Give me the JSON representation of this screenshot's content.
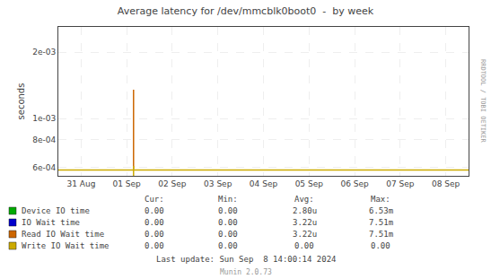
{
  "chart_data": {
    "type": "line",
    "title": "Average latency for /dev/mmcblk0boot0  -  by week",
    "ylabel": "seconds",
    "log": "y",
    "grid": true,
    "xlim": [
      -0.5,
      8.5
    ],
    "xticks": [
      {
        "value": 0,
        "label": "31 Aug"
      },
      {
        "value": 1,
        "label": "01 Sep"
      },
      {
        "value": 2,
        "label": "02 Sep"
      },
      {
        "value": 3,
        "label": "03 Sep"
      },
      {
        "value": 4,
        "label": "04 Sep"
      },
      {
        "value": 5,
        "label": "05 Sep"
      },
      {
        "value": 6,
        "label": "06 Sep"
      },
      {
        "value": 7,
        "label": "07 Sep"
      },
      {
        "value": 8,
        "label": "08 Sep"
      }
    ],
    "ylim": [
      0.00055,
      0.0026
    ],
    "yticks": [
      {
        "value": 0.0006,
        "label": "6e-04"
      },
      {
        "value": 0.0008,
        "label": "8e-04"
      },
      {
        "value": 0.001,
        "label": "1e-03"
      },
      {
        "value": 0.002,
        "label": "2e-03"
      }
    ],
    "series": [
      {
        "name": "Device IO time",
        "color": "#00aa00",
        "x": [],
        "values": []
      },
      {
        "name": "IO Wait time",
        "color": "#0000cc",
        "x": [],
        "values": []
      },
      {
        "name": "Read IO Wait time",
        "color": "#cc6600",
        "x": [
          1.15,
          1.15
        ],
        "values": [
          0.00059,
          0.00135
        ]
      },
      {
        "name": "Write IO Wait time",
        "color": "#ccaa00",
        "x": [
          -0.5,
          8.5,
          null,
          1.15,
          1.15
        ],
        "values": [
          0.000585,
          0.000585,
          null,
          0.00055,
          0.00061
        ]
      }
    ],
    "annotations": [
      [
        "Cur:",
        "Min:",
        "Avg:",
        "Max:"
      ],
      [
        "0.00",
        "0.00",
        "2.80u",
        "6.53m"
      ],
      [
        "0.00",
        "0.00",
        "3.22u",
        "7.51m"
      ],
      [
        "0.00",
        "0.00",
        "3.22u",
        "7.51m"
      ],
      [
        "0.00",
        "0.00",
        "0.00",
        "0.00"
      ],
      "Last update: Sun Sep  8 14:00:14 2024",
      "Munin 2.0.73",
      "RRDTOOL / TOBI OETIKER"
    ]
  }
}
